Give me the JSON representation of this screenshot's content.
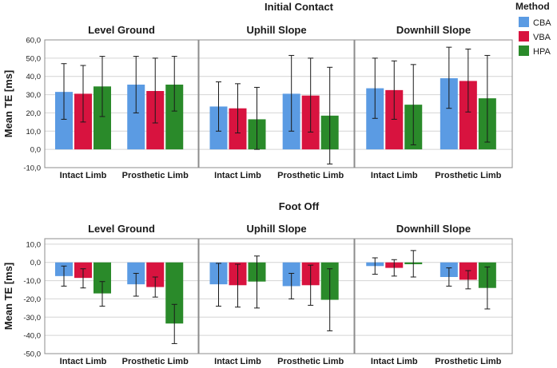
{
  "legend": {
    "title": "Method",
    "items": [
      {
        "label": "CBA",
        "color": "#5B9BE3"
      },
      {
        "label": "VBA",
        "color": "#D8133F"
      },
      {
        "label": "HPA",
        "color": "#2A8A2A"
      }
    ]
  },
  "y_axis_label": "Mean TE [ms]",
  "chart_data": [
    {
      "type": "bar",
      "title": "Initial Contact",
      "ylabel": "Mean TE [ms]",
      "ylim": [
        -10,
        60
      ],
      "yticks": [
        "-10,0",
        "0,0",
        "10,0",
        "20,0",
        "30,0",
        "40,0",
        "50,0",
        "60,0"
      ],
      "ytick_values": [
        -10,
        0,
        10,
        20,
        30,
        40,
        50,
        60
      ],
      "grid": true,
      "panels": [
        {
          "title": "Level Ground",
          "categories": [
            "Intact Limb",
            "Prosthetic Limb"
          ],
          "series": [
            {
              "name": "CBA",
              "values": [
                31.5,
                35.5
              ],
              "error_low": [
                16.5,
                20.0
              ],
              "error_high": [
                47.0,
                51.0
              ]
            },
            {
              "name": "VBA",
              "values": [
                30.5,
                32.0
              ],
              "error_low": [
                15.0,
                14.5
              ],
              "error_high": [
                46.0,
                50.0
              ]
            },
            {
              "name": "HPA",
              "values": [
                34.5,
                35.5
              ],
              "error_low": [
                18.0,
                21.0
              ],
              "error_high": [
                51.0,
                51.0
              ]
            }
          ]
        },
        {
          "title": "Uphill Slope",
          "categories": [
            "Intact Limb",
            "Prosthetic Limb"
          ],
          "series": [
            {
              "name": "CBA",
              "values": [
                23.5,
                30.5
              ],
              "error_low": [
                10.0,
                10.0
              ],
              "error_high": [
                37.0,
                51.5
              ]
            },
            {
              "name": "VBA",
              "values": [
                22.5,
                29.5
              ],
              "error_low": [
                9.0,
                9.5
              ],
              "error_high": [
                36.0,
                50.0
              ]
            },
            {
              "name": "HPA",
              "values": [
                16.5,
                18.5
              ],
              "error_low": [
                0.0,
                -8.0
              ],
              "error_high": [
                34.0,
                45.0
              ]
            }
          ]
        },
        {
          "title": "Downhill Slope",
          "categories": [
            "Intact Limb",
            "Prosthetic Limb"
          ],
          "series": [
            {
              "name": "CBA",
              "values": [
                33.5,
                39.0
              ],
              "error_low": [
                17.0,
                22.5
              ],
              "error_high": [
                50.0,
                56.0
              ]
            },
            {
              "name": "VBA",
              "values": [
                32.5,
                37.5
              ],
              "error_low": [
                16.5,
                20.5
              ],
              "error_high": [
                48.5,
                55.0
              ]
            },
            {
              "name": "HPA",
              "values": [
                24.5,
                28.0
              ],
              "error_low": [
                2.5,
                4.0
              ],
              "error_high": [
                46.5,
                51.5
              ]
            }
          ]
        }
      ]
    },
    {
      "type": "bar",
      "title": "Foot Off",
      "ylabel": "Mean TE [ms]",
      "ylim": [
        -50,
        13
      ],
      "yticks": [
        "-50,0",
        "-40,0",
        "-30,0",
        "-20,0",
        "-10,0",
        "0,0",
        "10,0"
      ],
      "ytick_values": [
        -50,
        -40,
        -30,
        -20,
        -10,
        0,
        10
      ],
      "grid": true,
      "panels": [
        {
          "title": "Level Ground",
          "categories": [
            "Intact Limb",
            "Prosthetic Limb"
          ],
          "series": [
            {
              "name": "CBA",
              "values": [
                -7.5,
                -12.0
              ],
              "error_low": [
                -13.0,
                -18.5
              ],
              "error_high": [
                -2.0,
                -6.0
              ]
            },
            {
              "name": "VBA",
              "values": [
                -8.5,
                -13.5
              ],
              "error_low": [
                -14.0,
                -19.0
              ],
              "error_high": [
                -3.5,
                -8.0
              ]
            },
            {
              "name": "HPA",
              "values": [
                -17.0,
                -33.5
              ],
              "error_low": [
                -24.0,
                -44.5
              ],
              "error_high": [
                -10.5,
                -23.0
              ]
            }
          ]
        },
        {
          "title": "Uphill Slope",
          "categories": [
            "Intact Limb",
            "Prosthetic Limb"
          ],
          "series": [
            {
              "name": "CBA",
              "values": [
                -12.0,
                -13.0
              ],
              "error_low": [
                -24.0,
                -20.0
              ],
              "error_high": [
                -0.5,
                -6.0
              ]
            },
            {
              "name": "VBA",
              "values": [
                -12.5,
                -12.5
              ],
              "error_low": [
                -24.5,
                -23.5
              ],
              "error_high": [
                -1.0,
                -1.5
              ]
            },
            {
              "name": "HPA",
              "values": [
                -10.5,
                -20.5
              ],
              "error_low": [
                -25.0,
                -37.5
              ],
              "error_high": [
                3.5,
                -3.5
              ]
            }
          ]
        },
        {
          "title": "Downhill Slope",
          "categories": [
            "Intact Limb",
            "Prosthetic Limb"
          ],
          "series": [
            {
              "name": "CBA",
              "values": [
                -2.0,
                -8.0
              ],
              "error_low": [
                -6.5,
                -13.0
              ],
              "error_high": [
                2.5,
                -3.0
              ]
            },
            {
              "name": "VBA",
              "values": [
                -3.0,
                -9.5
              ],
              "error_low": [
                -7.5,
                -14.5
              ],
              "error_high": [
                1.5,
                -4.5
              ]
            },
            {
              "name": "HPA",
              "values": [
                -1.0,
                -14.0
              ],
              "error_low": [
                -8.0,
                -25.5
              ],
              "error_high": [
                6.5,
                -2.5
              ]
            }
          ]
        }
      ]
    }
  ]
}
